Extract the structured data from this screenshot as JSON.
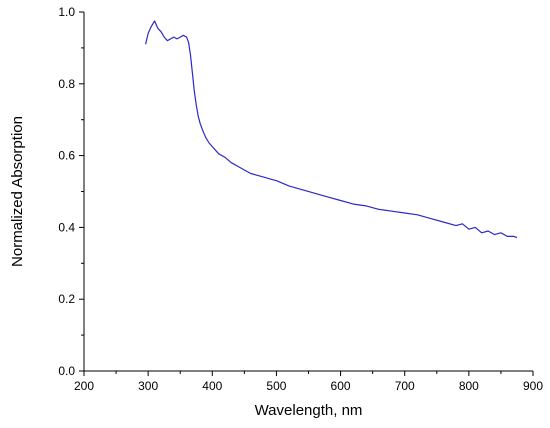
{
  "chart_data": {
    "type": "line",
    "title": "",
    "xlabel": "Wavelength, nm",
    "ylabel": "Normalized Absorption",
    "xlim": [
      200,
      900
    ],
    "ylim": [
      0.0,
      1.0
    ],
    "xticks": [
      "200",
      "300",
      "400",
      "500",
      "600",
      "700",
      "800",
      "900"
    ],
    "yticks": [
      "0.0",
      "0.2",
      "0.4",
      "0.6",
      "0.8",
      "1.0"
    ],
    "grid": false,
    "legend": "none",
    "series": [
      {
        "color": "#2a2ac8",
        "x": [
          296,
          300,
          305,
          310,
          315,
          320,
          325,
          330,
          335,
          340,
          345,
          350,
          355,
          360,
          363,
          366,
          369,
          372,
          375,
          378,
          381,
          385,
          390,
          395,
          400,
          410,
          420,
          430,
          440,
          450,
          460,
          470,
          480,
          490,
          500,
          520,
          540,
          560,
          580,
          600,
          620,
          640,
          660,
          680,
          700,
          720,
          740,
          760,
          780,
          790,
          800,
          810,
          820,
          830,
          840,
          850,
          860,
          870,
          875
        ],
        "y": [
          0.91,
          0.94,
          0.96,
          0.975,
          0.955,
          0.945,
          0.93,
          0.92,
          0.925,
          0.93,
          0.925,
          0.93,
          0.935,
          0.93,
          0.915,
          0.88,
          0.83,
          0.78,
          0.74,
          0.71,
          0.69,
          0.67,
          0.65,
          0.635,
          0.625,
          0.605,
          0.595,
          0.58,
          0.57,
          0.56,
          0.55,
          0.545,
          0.54,
          0.535,
          0.53,
          0.515,
          0.505,
          0.495,
          0.485,
          0.475,
          0.465,
          0.46,
          0.45,
          0.445,
          0.44,
          0.435,
          0.425,
          0.415,
          0.405,
          0.41,
          0.395,
          0.4,
          0.385,
          0.39,
          0.38,
          0.385,
          0.375,
          0.375,
          0.372
        ]
      }
    ]
  }
}
